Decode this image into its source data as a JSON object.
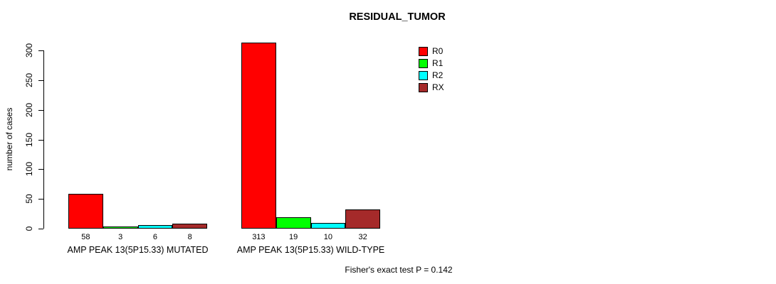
{
  "background": "#FFFFFF",
  "chart_data": {
    "type": "bar",
    "title": "RESIDUAL_TUMOR",
    "xlabel": "",
    "ylabel": "number of cases",
    "categories": [
      "AMP PEAK 13(5P15.33) MUTATED",
      "AMP PEAK 13(5P15.33) WILD-TYPE"
    ],
    "series": [
      {
        "name": "R0",
        "color": "#FF0000",
        "values": [
          58,
          313
        ]
      },
      {
        "name": "R1",
        "color": "#00FF00",
        "values": [
          3,
          19
        ]
      },
      {
        "name": "R2",
        "color": "#00FFFF",
        "values": [
          6,
          10
        ]
      },
      {
        "name": "RX",
        "color": "#A52A2A",
        "values": [
          8,
          32
        ]
      }
    ],
    "yticks": [
      0,
      50,
      100,
      150,
      200,
      250,
      300
    ],
    "ylim": [
      0,
      313
    ],
    "grid": false,
    "legend_position": "top-right",
    "legend_items": [
      "R0",
      "R1",
      "R2",
      "RX"
    ],
    "annotation": "Fisher's exact test P = 0.142"
  }
}
